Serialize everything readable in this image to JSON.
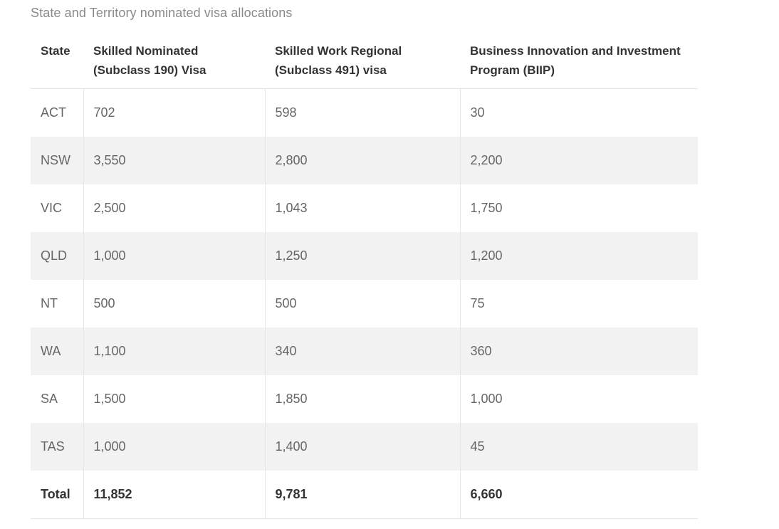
{
  "caption": "State and Territory nominated visa allocations",
  "table": {
    "headers": [
      "State",
      "Skilled Nominated (Subclass 190) Visa",
      "Skilled Work Regional (Subclass 491) visa",
      "Business Innovation and Investment Program (BIIP)"
    ],
    "rows": [
      [
        "ACT",
        "702",
        "598",
        "30"
      ],
      [
        "NSW",
        "3,550",
        "2,800",
        "2,200"
      ],
      [
        "VIC",
        "2,500",
        "1,043",
        "1,750"
      ],
      [
        "QLD",
        "1,000",
        "1,250",
        "1,200"
      ],
      [
        "NT",
        "500",
        "500",
        "75"
      ],
      [
        "WA",
        "1,100",
        "340",
        "360"
      ],
      [
        "SA",
        "1,500",
        "1,850",
        "1,000"
      ],
      [
        "TAS",
        "1,000",
        "1,400",
        "45"
      ]
    ],
    "total": [
      "Total",
      "11,852",
      "9,781",
      "6,660"
    ]
  },
  "colors": {
    "stripe": "#f2f2f2",
    "border": "#e4e4e4",
    "header_text": "#333333",
    "cell_text": "#666666",
    "caption_text": "#8a8a8a"
  }
}
